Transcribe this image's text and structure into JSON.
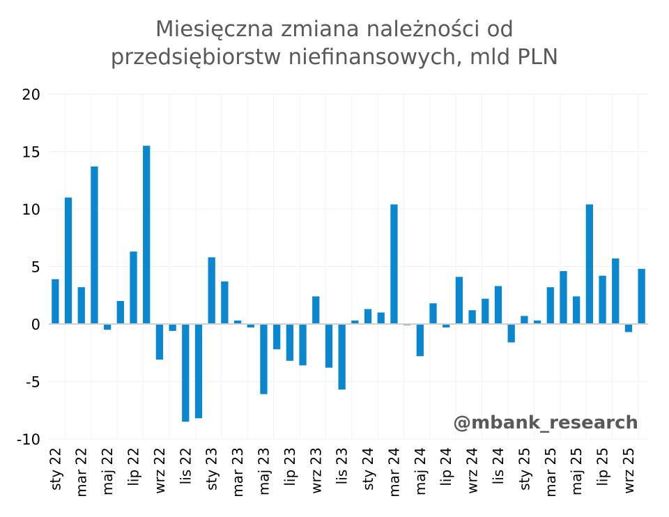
{
  "chart_data": {
    "type": "bar",
    "title_lines": [
      "Miesięczna zmiana należności od",
      "przedsiębiorstw niefinansowych, mld PLN"
    ],
    "xlabel": "",
    "ylabel": "",
    "ylim": [
      -10,
      20
    ],
    "yticks": [
      20,
      15,
      10,
      5,
      0,
      -5,
      -10
    ],
    "ytick_labels": [
      "20",
      "15",
      "10",
      "5",
      "0",
      "-5",
      "-10"
    ],
    "grid": true,
    "bar_color": "#0a87cf",
    "categories": [
      "sty 22",
      "lut 22",
      "mar 22",
      "kwi 22",
      "maj 22",
      "cze 22",
      "lip 22",
      "sie 22",
      "wrz 22",
      "paź 22",
      "lis 22",
      "gru 22",
      "sty 23",
      "lut 23",
      "mar 23",
      "kwi 23",
      "maj 23",
      "cze 23",
      "lip 23",
      "sie 23",
      "wrz 23",
      "paź 23",
      "lis 23",
      "gru 23",
      "sty 24",
      "lut 24",
      "mar 24",
      "kwi 24",
      "maj 24",
      "cze 24",
      "lip 24",
      "sie 24",
      "wrz 24",
      "paź 24",
      "lis 24",
      "gru 24",
      "sty 25",
      "lut 25",
      "mar 25",
      "kwi 25",
      "maj 25",
      "cze 25",
      "lip 25",
      "sie 25",
      "wrz 25",
      "paź 25"
    ],
    "values": [
      3.9,
      11.0,
      3.2,
      13.7,
      -0.5,
      2.0,
      6.3,
      15.5,
      -3.1,
      -0.6,
      -8.5,
      -8.2,
      5.8,
      3.7,
      0.3,
      -0.3,
      -6.1,
      -2.2,
      -3.2,
      -3.6,
      2.4,
      -3.8,
      -5.7,
      0.3,
      1.3,
      1.0,
      10.4,
      -0.1,
      -2.8,
      1.8,
      -0.3,
      4.1,
      1.2,
      2.2,
      3.3,
      -1.6,
      0.7,
      0.3,
      3.2,
      4.6,
      2.4,
      10.4,
      4.2,
      5.7,
      -0.7,
      4.8
    ],
    "xtick_labels": [
      "sty 22",
      "mar 22",
      "maj 22",
      "lip 22",
      "wrz 22",
      "lis 22",
      "sty 23",
      "mar 23",
      "maj 23",
      "lip 23",
      "wrz 23",
      "lis 23",
      "sty 24",
      "mar 24",
      "maj 24",
      "lip 24",
      "wrz 24",
      "lis 24",
      "sty 25",
      "mar 25",
      "maj 25",
      "lip 25",
      "wrz 25"
    ],
    "xtick_step": 2
  },
  "watermark": "@mbank_research"
}
